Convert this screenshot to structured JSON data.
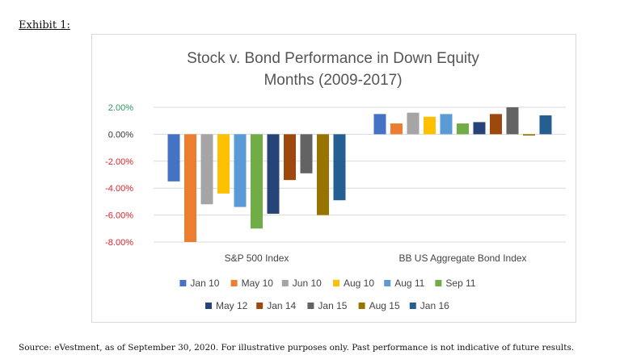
{
  "exhibit_label": "Exhibit 1:",
  "source_note": "Source: eVestment, as of September 30, 2020. For illustrative purposes only. Past performance is not indicative of future results.",
  "chart_data": {
    "type": "bar",
    "title": [
      "Stock v. Bond Performance in Down Equity",
      "Months (2009-2017)"
    ],
    "categories": [
      "S&P 500 Index",
      "BB US Aggregate Bond Index"
    ],
    "ylim": [
      -8,
      2
    ],
    "yticks": [
      2,
      0,
      -2,
      -4,
      -6,
      -8
    ],
    "ytick_labels": [
      "2.00%",
      "0.00%",
      "-2.00%",
      "-4.00%",
      "-6.00%",
      "-8.00%"
    ],
    "ytick_colors": [
      "#2e9a5a",
      "#333333",
      "#e0202a",
      "#e0202a",
      "#e0202a",
      "#e0202a"
    ],
    "grid": true,
    "legend_position": "bottom",
    "series": [
      {
        "name": "Jan 10",
        "color": "#4472C4",
        "values": [
          -3.5,
          1.5
        ]
      },
      {
        "name": "May 10",
        "color": "#ED7D31",
        "values": [
          -8.0,
          0.8
        ]
      },
      {
        "name": "Jun 10",
        "color": "#A5A5A5",
        "values": [
          -5.2,
          1.6
        ]
      },
      {
        "name": "Aug 10",
        "color": "#FFC000",
        "values": [
          -4.4,
          1.3
        ]
      },
      {
        "name": "Aug 11",
        "color": "#5B9BD5",
        "values": [
          -5.4,
          1.5
        ]
      },
      {
        "name": "Sep 11",
        "color": "#70AD47",
        "values": [
          -7.0,
          0.8
        ]
      },
      {
        "name": "May 12",
        "color": "#264478",
        "values": [
          -5.9,
          0.9
        ]
      },
      {
        "name": "Jan 14",
        "color": "#9E480E",
        "values": [
          -3.4,
          1.5
        ]
      },
      {
        "name": "Jan 15",
        "color": "#636363",
        "values": [
          -2.9,
          2.0
        ]
      },
      {
        "name": "Aug 15",
        "color": "#997300",
        "values": [
          -6.0,
          -0.1
        ]
      },
      {
        "name": "Jan 16",
        "color": "#255E91",
        "values": [
          -4.9,
          1.4
        ]
      }
    ]
  }
}
